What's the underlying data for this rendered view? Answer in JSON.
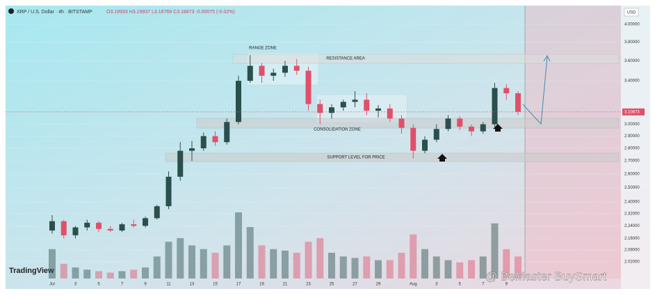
{
  "chart_data": {
    "type": "candlestick",
    "title": "XRP / U.S. Dollar · 4h · BITSTAMP",
    "readout": "O3.19933 H3.19937 L3.18769 C3.18873 -0.00075 (-0.02%)",
    "currency": "USD",
    "branding": "TradingView",
    "watermark": "@ BeMaster BuySmart",
    "log_scale": true,
    "up_color": "#2a4f4c",
    "down_color": "#e0506a",
    "categories": [
      "Jul",
      null,
      "3",
      null,
      "5",
      null,
      "7",
      null,
      "9",
      null,
      "11",
      null,
      "13",
      null,
      "15",
      null,
      "17",
      null,
      "19",
      null,
      "21",
      null,
      "23",
      null,
      "25",
      null,
      "27",
      null,
      "29",
      null,
      null,
      "Aug",
      null,
      "3",
      null,
      "5",
      null,
      "7",
      null,
      "9",
      null
    ],
    "open": [
      2.21,
      2.27,
      2.18,
      2.23,
      2.26,
      2.22,
      2.21,
      2.25,
      2.24,
      2.29,
      2.37,
      2.58,
      2.78,
      2.8,
      2.9,
      2.85,
      3.02,
      3.4,
      3.55,
      3.45,
      3.48,
      3.55,
      3.5,
      3.18,
      3.1,
      3.15,
      3.2,
      3.22,
      3.12,
      3.14,
      3.05,
      2.97,
      2.78,
      2.87,
      2.96,
      3.05,
      2.98,
      2.94,
      3.0,
      3.33,
      3.28
    ],
    "high": [
      2.31,
      2.28,
      2.24,
      2.28,
      2.27,
      2.24,
      2.26,
      2.28,
      2.3,
      2.38,
      2.62,
      2.85,
      2.86,
      2.93,
      2.94,
      3.05,
      3.45,
      3.66,
      3.58,
      3.52,
      3.6,
      3.62,
      3.54,
      3.22,
      3.18,
      3.22,
      3.3,
      3.28,
      3.17,
      3.18,
      3.08,
      3.0,
      2.9,
      3.0,
      3.08,
      3.07,
      3.0,
      3.02,
      3.38,
      3.37,
      3.3
    ],
    "low": [
      2.19,
      2.16,
      2.16,
      2.21,
      2.2,
      2.2,
      2.2,
      2.23,
      2.23,
      2.28,
      2.35,
      2.55,
      2.7,
      2.78,
      2.82,
      2.83,
      3.0,
      3.38,
      3.38,
      3.4,
      3.44,
      3.46,
      3.12,
      3.0,
      3.05,
      3.12,
      3.15,
      3.08,
      3.06,
      3.02,
      2.92,
      2.72,
      2.76,
      2.85,
      2.94,
      2.95,
      2.9,
      2.92,
      2.98,
      3.22,
      3.08
    ],
    "close": [
      2.27,
      2.18,
      2.23,
      2.26,
      2.22,
      2.21,
      2.25,
      2.24,
      2.29,
      2.37,
      2.58,
      2.78,
      2.8,
      2.9,
      2.85,
      3.02,
      3.4,
      3.55,
      3.45,
      3.48,
      3.55,
      3.5,
      3.18,
      3.1,
      3.15,
      3.2,
      3.22,
      3.12,
      3.14,
      3.05,
      2.97,
      2.78,
      2.87,
      2.96,
      3.05,
      2.98,
      2.94,
      3.0,
      3.33,
      3.28,
      3.11
    ],
    "volume": [
      40,
      20,
      15,
      12,
      10,
      8,
      10,
      12,
      15,
      30,
      50,
      55,
      45,
      40,
      35,
      45,
      90,
      70,
      45,
      40,
      38,
      35,
      50,
      55,
      35,
      30,
      28,
      30,
      25,
      25,
      35,
      60,
      40,
      30,
      25,
      22,
      25,
      30,
      75,
      40,
      30
    ],
    "last_price": 3.10873,
    "ylim": [
      1.925,
      4.205
    ],
    "yticks": [
      {
        "value": 4,
        "label": "4.00000"
      },
      {
        "value": 3.8,
        "label": "3.80000"
      },
      {
        "value": 3.6,
        "label": "3.60000"
      },
      {
        "value": 3.4,
        "label": "3.40000"
      },
      {
        "value": 3,
        "label": "3.00000"
      },
      {
        "value": 2.9,
        "label": "2.90000"
      },
      {
        "value": 2.8,
        "label": "2.80000"
      },
      {
        "value": 2.7,
        "label": "2.70000"
      },
      {
        "value": 2.6,
        "label": "2.60000"
      },
      {
        "value": 2.5,
        "label": "2.50000"
      },
      {
        "value": 2.4,
        "label": "2.40000"
      },
      {
        "value": 2.32,
        "label": "2.32000"
      },
      {
        "value": 2.24,
        "label": "2.24000"
      },
      {
        "value": 2.16,
        "label": "2.16000"
      },
      {
        "value": 2.09,
        "label": "2.09000"
      },
      {
        "value": 2.02,
        "label": "2.02000"
      }
    ],
    "annotations": [
      "RANGE ZONE",
      "RESISTANCE AREA",
      "CONSOLIDATION ZONE",
      "SUPPORT LEVEL FOR PRICE"
    ]
  }
}
